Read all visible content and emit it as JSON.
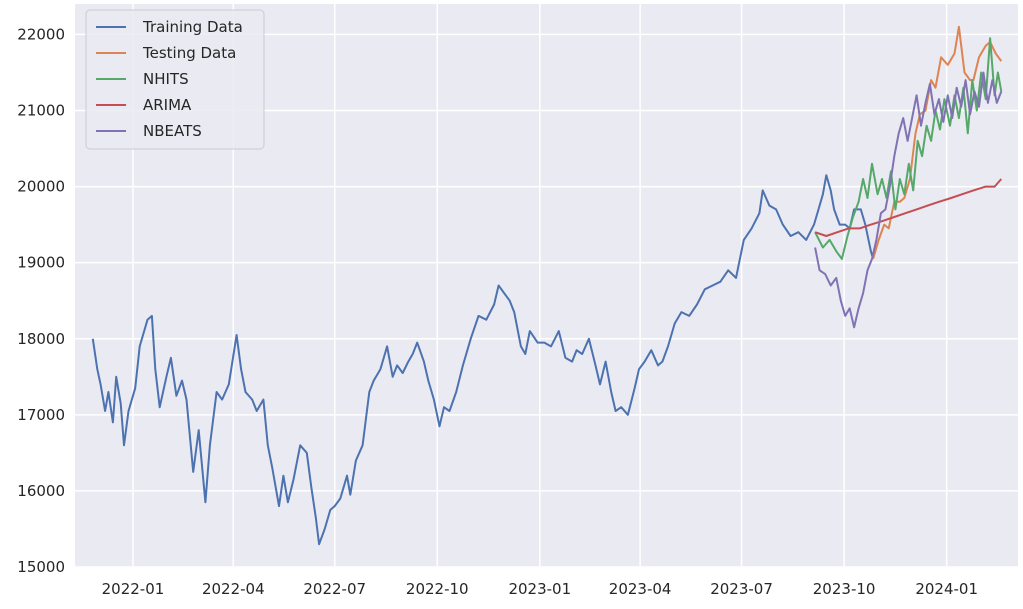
{
  "chart_data": {
    "type": "line",
    "title": "",
    "xlabel": "",
    "ylabel": "",
    "xlim": [
      "2021-11-10",
      "2024-03-05"
    ],
    "ylim": [
      15000,
      22400
    ],
    "grid": true,
    "legend_position": "top-left",
    "x_ticks": [
      "2022-01",
      "2022-04",
      "2022-07",
      "2022-10",
      "2023-01",
      "2023-04",
      "2023-07",
      "2023-10",
      "2024-01"
    ],
    "y_ticks": [
      "15000",
      "16000",
      "17000",
      "18000",
      "19000",
      "20000",
      "21000",
      "22000"
    ],
    "legend": [
      "Training Data",
      "Testing Data",
      "NHITS",
      "ARIMA",
      "NBEATS"
    ],
    "series": [
      {
        "name": "Training Data",
        "color": "#4c72b0",
        "points": [
          [
            "2021-11-26",
            18000
          ],
          [
            "2021-11-30",
            17600
          ],
          [
            "2021-12-03",
            17400
          ],
          [
            "2021-12-07",
            17050
          ],
          [
            "2021-12-10",
            17300
          ],
          [
            "2021-12-14",
            16900
          ],
          [
            "2021-12-17",
            17500
          ],
          [
            "2021-12-21",
            17150
          ],
          [
            "2021-12-24",
            16600
          ],
          [
            "2021-12-28",
            17050
          ],
          [
            "2022-01-03",
            17350
          ],
          [
            "2022-01-07",
            17900
          ],
          [
            "2022-01-14",
            18250
          ],
          [
            "2022-01-18",
            18300
          ],
          [
            "2022-01-21",
            17600
          ],
          [
            "2022-01-25",
            17100
          ],
          [
            "2022-01-31",
            17500
          ],
          [
            "2022-02-04",
            17750
          ],
          [
            "2022-02-09",
            17250
          ],
          [
            "2022-02-14",
            17450
          ],
          [
            "2022-02-18",
            17200
          ],
          [
            "2022-02-24",
            16250
          ],
          [
            "2022-03-01",
            16800
          ],
          [
            "2022-03-07",
            15850
          ],
          [
            "2022-03-11",
            16600
          ],
          [
            "2022-03-17",
            17300
          ],
          [
            "2022-03-22",
            17200
          ],
          [
            "2022-03-28",
            17400
          ],
          [
            "2022-04-04",
            18050
          ],
          [
            "2022-04-08",
            17600
          ],
          [
            "2022-04-12",
            17300
          ],
          [
            "2022-04-18",
            17200
          ],
          [
            "2022-04-22",
            17050
          ],
          [
            "2022-04-28",
            17200
          ],
          [
            "2022-05-02",
            16600
          ],
          [
            "2022-05-06",
            16300
          ],
          [
            "2022-05-12",
            15800
          ],
          [
            "2022-05-16",
            16200
          ],
          [
            "2022-05-20",
            15850
          ],
          [
            "2022-05-25",
            16150
          ],
          [
            "2022-05-31",
            16600
          ],
          [
            "2022-06-06",
            16500
          ],
          [
            "2022-06-10",
            16050
          ],
          [
            "2022-06-14",
            15650
          ],
          [
            "2022-06-17",
            15300
          ],
          [
            "2022-06-22",
            15500
          ],
          [
            "2022-06-27",
            15750
          ],
          [
            "2022-07-01",
            15800
          ],
          [
            "2022-07-06",
            15900
          ],
          [
            "2022-07-12",
            16200
          ],
          [
            "2022-07-15",
            15950
          ],
          [
            "2022-07-20",
            16400
          ],
          [
            "2022-07-26",
            16600
          ],
          [
            "2022-08-01",
            17300
          ],
          [
            "2022-08-05",
            17450
          ],
          [
            "2022-08-11",
            17600
          ],
          [
            "2022-08-17",
            17900
          ],
          [
            "2022-08-22",
            17500
          ],
          [
            "2022-08-26",
            17650
          ],
          [
            "2022-08-31",
            17550
          ],
          [
            "2022-09-05",
            17700
          ],
          [
            "2022-09-09",
            17800
          ],
          [
            "2022-09-13",
            17950
          ],
          [
            "2022-09-19",
            17700
          ],
          [
            "2022-09-23",
            17450
          ],
          [
            "2022-09-28",
            17200
          ],
          [
            "2022-10-03",
            16850
          ],
          [
            "2022-10-07",
            17100
          ],
          [
            "2022-10-12",
            17050
          ],
          [
            "2022-10-18",
            17300
          ],
          [
            "2022-10-24",
            17650
          ],
          [
            "2022-10-31",
            18000
          ],
          [
            "2022-11-07",
            18300
          ],
          [
            "2022-11-14",
            18250
          ],
          [
            "2022-11-21",
            18450
          ],
          [
            "2022-11-25",
            18700
          ],
          [
            "2022-11-30",
            18600
          ],
          [
            "2022-12-05",
            18500
          ],
          [
            "2022-12-09",
            18350
          ],
          [
            "2022-12-15",
            17900
          ],
          [
            "2022-12-19",
            17800
          ],
          [
            "2022-12-23",
            18100
          ],
          [
            "2022-12-30",
            17950
          ],
          [
            "2023-01-05",
            17950
          ],
          [
            "2023-01-11",
            17900
          ],
          [
            "2023-01-18",
            18100
          ],
          [
            "2023-01-24",
            17750
          ],
          [
            "2023-01-30",
            17700
          ],
          [
            "2023-02-03",
            17850
          ],
          [
            "2023-02-08",
            17800
          ],
          [
            "2023-02-14",
            18000
          ],
          [
            "2023-02-20",
            17650
          ],
          [
            "2023-02-24",
            17400
          ],
          [
            "2023-03-01",
            17700
          ],
          [
            "2023-03-06",
            17300
          ],
          [
            "2023-03-10",
            17050
          ],
          [
            "2023-03-15",
            17100
          ],
          [
            "2023-03-21",
            17000
          ],
          [
            "2023-03-27",
            17350
          ],
          [
            "2023-03-31",
            17600
          ],
          [
            "2023-04-05",
            17700
          ],
          [
            "2023-04-11",
            17850
          ],
          [
            "2023-04-17",
            17650
          ],
          [
            "2023-04-21",
            17700
          ],
          [
            "2023-04-26",
            17900
          ],
          [
            "2023-05-02",
            18200
          ],
          [
            "2023-05-08",
            18350
          ],
          [
            "2023-05-15",
            18300
          ],
          [
            "2023-05-22",
            18450
          ],
          [
            "2023-05-29",
            18650
          ],
          [
            "2023-06-05",
            18700
          ],
          [
            "2023-06-12",
            18750
          ],
          [
            "2023-06-19",
            18900
          ],
          [
            "2023-06-26",
            18800
          ],
          [
            "2023-07-03",
            19300
          ],
          [
            "2023-07-10",
            19450
          ],
          [
            "2023-07-17",
            19650
          ],
          [
            "2023-07-20",
            19950
          ],
          [
            "2023-07-26",
            19750
          ],
          [
            "2023-08-01",
            19700
          ],
          [
            "2023-08-07",
            19500
          ],
          [
            "2023-08-14",
            19350
          ],
          [
            "2023-08-21",
            19400
          ],
          [
            "2023-08-28",
            19300
          ],
          [
            "2023-09-04",
            19500
          ],
          [
            "2023-09-08",
            19700
          ],
          [
            "2023-09-12",
            19900
          ],
          [
            "2023-09-15",
            20150
          ],
          [
            "2023-09-19",
            19950
          ],
          [
            "2023-09-22",
            19700
          ],
          [
            "2023-09-27",
            19500
          ],
          [
            "2023-10-02",
            19500
          ],
          [
            "2023-10-06",
            19450
          ],
          [
            "2023-10-10",
            19700
          ],
          [
            "2023-10-16",
            19700
          ],
          [
            "2023-10-20",
            19500
          ],
          [
            "2023-10-25",
            19150
          ],
          [
            "2023-10-27",
            19050
          ]
        ]
      },
      {
        "name": "Testing Data",
        "color": "#dd8452",
        "points": [
          [
            "2023-10-27",
            19050
          ],
          [
            "2023-11-01",
            19300
          ],
          [
            "2023-11-06",
            19500
          ],
          [
            "2023-11-10",
            19450
          ],
          [
            "2023-11-15",
            19800
          ],
          [
            "2023-11-20",
            19800
          ],
          [
            "2023-11-24",
            19850
          ],
          [
            "2023-11-29",
            20100
          ],
          [
            "2023-12-04",
            20700
          ],
          [
            "2023-12-08",
            20950
          ],
          [
            "2023-12-13",
            21000
          ],
          [
            "2023-12-18",
            21400
          ],
          [
            "2023-12-22",
            21300
          ],
          [
            "2023-12-27",
            21700
          ],
          [
            "2024-01-02",
            21600
          ],
          [
            "2024-01-08",
            21750
          ],
          [
            "2024-01-12",
            22100
          ],
          [
            "2024-01-17",
            21500
          ],
          [
            "2024-01-22",
            21400
          ],
          [
            "2024-01-25",
            21400
          ],
          [
            "2024-01-30",
            21700
          ],
          [
            "2024-02-05",
            21850
          ],
          [
            "2024-02-09",
            21900
          ],
          [
            "2024-02-14",
            21750
          ],
          [
            "2024-02-19",
            21650
          ]
        ]
      },
      {
        "name": "NHITS",
        "color": "#55a868",
        "points": [
          [
            "2023-09-05",
            19400
          ],
          [
            "2023-09-12",
            19200
          ],
          [
            "2023-09-18",
            19300
          ],
          [
            "2023-09-24",
            19150
          ],
          [
            "2023-09-29",
            19050
          ],
          [
            "2023-10-04",
            19350
          ],
          [
            "2023-10-09",
            19600
          ],
          [
            "2023-10-14",
            19800
          ],
          [
            "2023-10-18",
            20100
          ],
          [
            "2023-10-22",
            19850
          ],
          [
            "2023-10-26",
            20300
          ],
          [
            "2023-10-31",
            19900
          ],
          [
            "2023-11-04",
            20100
          ],
          [
            "2023-11-08",
            19850
          ],
          [
            "2023-11-12",
            20200
          ],
          [
            "2023-11-16",
            19700
          ],
          [
            "2023-11-20",
            20100
          ],
          [
            "2023-11-24",
            19900
          ],
          [
            "2023-11-28",
            20300
          ],
          [
            "2023-12-02",
            19950
          ],
          [
            "2023-12-06",
            20600
          ],
          [
            "2023-12-10",
            20400
          ],
          [
            "2023-12-14",
            20800
          ],
          [
            "2023-12-18",
            20600
          ],
          [
            "2023-12-22",
            21000
          ],
          [
            "2023-12-26",
            20750
          ],
          [
            "2023-12-30",
            21150
          ],
          [
            "2024-01-04",
            20800
          ],
          [
            "2024-01-08",
            21200
          ],
          [
            "2024-01-12",
            20900
          ],
          [
            "2024-01-16",
            21300
          ],
          [
            "2024-01-20",
            20700
          ],
          [
            "2024-01-24",
            21400
          ],
          [
            "2024-01-28",
            21000
          ],
          [
            "2024-02-01",
            21500
          ],
          [
            "2024-02-05",
            21150
          ],
          [
            "2024-02-09",
            21950
          ],
          [
            "2024-02-13",
            21200
          ],
          [
            "2024-02-16",
            21500
          ],
          [
            "2024-02-19",
            21250
          ]
        ]
      },
      {
        "name": "ARIMA",
        "color": "#c44e52",
        "points": [
          [
            "2023-09-05",
            19400
          ],
          [
            "2023-09-15",
            19350
          ],
          [
            "2023-09-25",
            19400
          ],
          [
            "2023-10-05",
            19450
          ],
          [
            "2023-10-15",
            19450
          ],
          [
            "2023-10-25",
            19500
          ],
          [
            "2023-11-05",
            19550
          ],
          [
            "2023-11-15",
            19600
          ],
          [
            "2023-11-25",
            19650
          ],
          [
            "2023-12-05",
            19700
          ],
          [
            "2023-12-15",
            19750
          ],
          [
            "2023-12-25",
            19800
          ],
          [
            "2024-01-05",
            19850
          ],
          [
            "2024-01-15",
            19900
          ],
          [
            "2024-01-25",
            19950
          ],
          [
            "2024-02-05",
            20000
          ],
          [
            "2024-02-13",
            20000
          ],
          [
            "2024-02-19",
            20100
          ]
        ]
      },
      {
        "name": "NBEATS",
        "color": "#8172b3",
        "points": [
          [
            "2023-09-05",
            19200
          ],
          [
            "2023-09-09",
            18900
          ],
          [
            "2023-09-14",
            18850
          ],
          [
            "2023-09-19",
            18700
          ],
          [
            "2023-09-24",
            18800
          ],
          [
            "2023-09-28",
            18500
          ],
          [
            "2023-10-02",
            18300
          ],
          [
            "2023-10-06",
            18400
          ],
          [
            "2023-10-10",
            18150
          ],
          [
            "2023-10-14",
            18400
          ],
          [
            "2023-10-18",
            18600
          ],
          [
            "2023-10-22",
            18900
          ],
          [
            "2023-10-26",
            19050
          ],
          [
            "2023-10-30",
            19300
          ],
          [
            "2023-11-03",
            19650
          ],
          [
            "2023-11-07",
            19700
          ],
          [
            "2023-11-11",
            20000
          ],
          [
            "2023-11-15",
            20400
          ],
          [
            "2023-11-19",
            20700
          ],
          [
            "2023-11-23",
            20900
          ],
          [
            "2023-11-27",
            20600
          ],
          [
            "2023-12-01",
            20900
          ],
          [
            "2023-12-05",
            21200
          ],
          [
            "2023-12-09",
            20800
          ],
          [
            "2023-12-13",
            21100
          ],
          [
            "2023-12-17",
            21350
          ],
          [
            "2023-12-21",
            20950
          ],
          [
            "2023-12-25",
            21150
          ],
          [
            "2023-12-29",
            20850
          ],
          [
            "2024-01-02",
            21200
          ],
          [
            "2024-01-06",
            20900
          ],
          [
            "2024-01-10",
            21300
          ],
          [
            "2024-01-14",
            21050
          ],
          [
            "2024-01-18",
            21400
          ],
          [
            "2024-01-22",
            20950
          ],
          [
            "2024-01-26",
            21250
          ],
          [
            "2024-01-30",
            21050
          ],
          [
            "2024-02-03",
            21500
          ],
          [
            "2024-02-07",
            21100
          ],
          [
            "2024-02-11",
            21400
          ],
          [
            "2024-02-15",
            21100
          ],
          [
            "2024-02-19",
            21250
          ]
        ]
      }
    ]
  }
}
